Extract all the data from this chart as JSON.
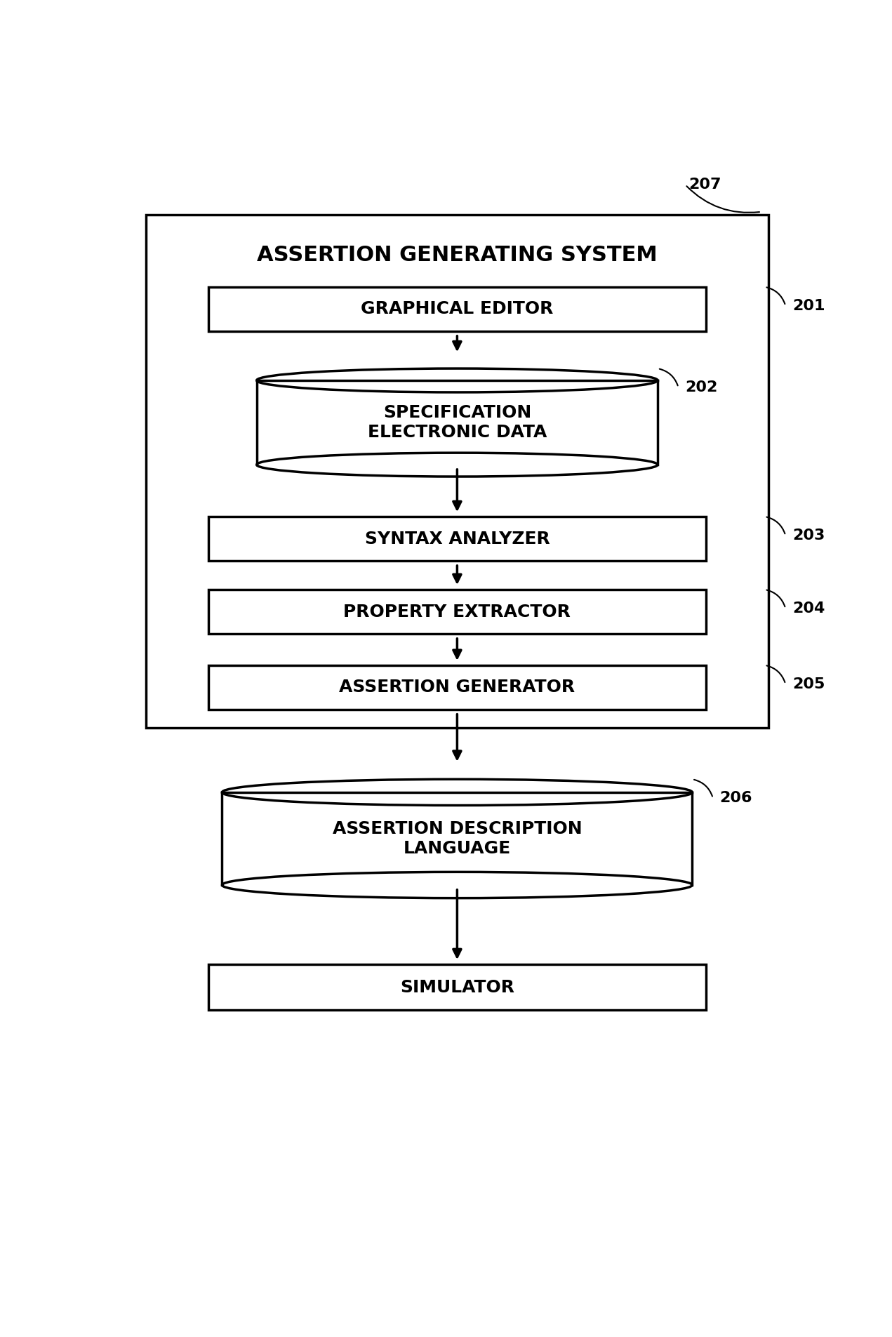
{
  "title": "ASSERTION GENERATING SYSTEM",
  "label_207": "207",
  "label_201": "201",
  "label_202": "202",
  "label_203": "203",
  "label_204": "204",
  "label_205": "205",
  "label_206": "206",
  "box_201_text": "GRAPHICAL EDITOR",
  "box_202_text": "SPECIFICATION\nELECTRONIC DATA",
  "box_203_text": "SYNTAX ANALYZER",
  "box_204_text": "PROPERTY EXTRACTOR",
  "box_205_text": "ASSERTION GENERATOR",
  "box_206_text": "ASSERTION DESCRIPTION\nLANGUAGE",
  "box_sim_text": "SIMULATOR",
  "bg_color": "#ffffff",
  "box_color": "#ffffff",
  "line_color": "#000000",
  "text_color": "#000000",
  "font_size_title": 22,
  "font_size_box": 18,
  "font_size_label": 16
}
